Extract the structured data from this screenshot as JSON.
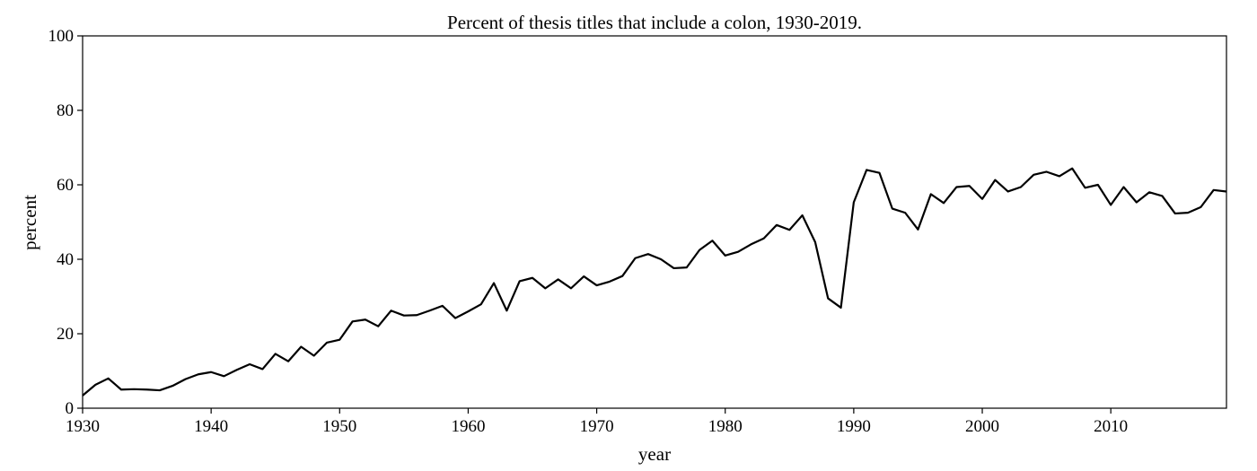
{
  "chart_data": {
    "type": "line",
    "title": "Percent of thesis titles that include a colon, 1930-2019.",
    "xlabel": "year",
    "ylabel": "percent",
    "xlim": [
      1930,
      2019
    ],
    "ylim": [
      0,
      100
    ],
    "xticks": [
      1930,
      1940,
      1950,
      1960,
      1970,
      1980,
      1990,
      2000,
      2010
    ],
    "yticks": [
      0,
      20,
      40,
      60,
      80,
      100
    ],
    "grid": false,
    "line_color": "#000000",
    "x": [
      1930,
      1931,
      1932,
      1933,
      1934,
      1935,
      1936,
      1937,
      1938,
      1939,
      1940,
      1941,
      1942,
      1943,
      1944,
      1945,
      1946,
      1947,
      1948,
      1949,
      1950,
      1951,
      1952,
      1953,
      1954,
      1955,
      1956,
      1957,
      1958,
      1959,
      1960,
      1961,
      1962,
      1963,
      1964,
      1965,
      1966,
      1967,
      1968,
      1969,
      1970,
      1971,
      1972,
      1973,
      1974,
      1975,
      1976,
      1977,
      1978,
      1979,
      1980,
      1981,
      1982,
      1983,
      1984,
      1985,
      1986,
      1987,
      1988,
      1989,
      1990,
      1991,
      1992,
      1993,
      1994,
      1995,
      1996,
      1997,
      1998,
      1999,
      2000,
      2001,
      2002,
      2003,
      2004,
      2005,
      2006,
      2007,
      2008,
      2009,
      2010,
      2011,
      2012,
      2013,
      2014,
      2015,
      2016,
      2017,
      2018,
      2019
    ],
    "series": [
      {
        "values": [
          3.4,
          6.3,
          8.0,
          5.0,
          5.1,
          5.0,
          4.8,
          6.0,
          7.8,
          9.1,
          9.7,
          8.6,
          10.3,
          11.8,
          10.5,
          14.6,
          12.6,
          16.5,
          14.1,
          17.6,
          18.4,
          23.3,
          23.8,
          22.0,
          26.2,
          24.9,
          25.0,
          26.2,
          27.5,
          24.2,
          26.0,
          27.9,
          33.6,
          26.2,
          34.1,
          35.0,
          32.2,
          34.6,
          32.2,
          35.4,
          33.0,
          34.0,
          35.5,
          40.3,
          41.4,
          40.0,
          37.6,
          37.8,
          42.5,
          45.0,
          41.0,
          42.0,
          44.0,
          45.6,
          49.2,
          47.9,
          51.8,
          44.6,
          29.5,
          27.0,
          55.3,
          64.0,
          63.2,
          53.6,
          52.5,
          48.0,
          57.5,
          55.1,
          59.4,
          59.7,
          56.2,
          61.3,
          58.2,
          59.4,
          62.7,
          63.5,
          62.3,
          64.4,
          59.2,
          60.0,
          54.6,
          59.4,
          55.3,
          58.0,
          57.0,
          52.3,
          52.5,
          54.0,
          58.6,
          58.2
        ]
      }
    ]
  }
}
